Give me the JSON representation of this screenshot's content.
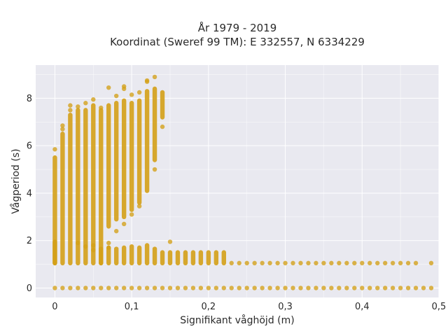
{
  "chart_data": {
    "type": "scatter",
    "title_line1": "År 1979 - 2019",
    "title_line2": "Koordinat (Sweref 99 TM): E 332557, N 6334229",
    "xlabel": "Signifikant våghöjd (m)",
    "ylabel": "Vågperiod (s)",
    "xlim": [
      -0.025,
      0.5
    ],
    "ylim": [
      -0.4,
      9.4
    ],
    "x_ticks": [
      0,
      0.1,
      0.2,
      0.3,
      0.4,
      0.5
    ],
    "x_tick_labels": [
      "0",
      "0,1",
      "0,2",
      "0,3",
      "0,4",
      "0,5"
    ],
    "y_ticks": [
      0,
      2,
      4,
      6,
      8
    ],
    "y_tick_labels": [
      "0",
      "2",
      "4",
      "6",
      "8"
    ],
    "grid": true,
    "colors": {
      "marker": "#d4a017",
      "plot_bg": "#e9e9f0",
      "grid": "#ffffff"
    },
    "columns": [
      {
        "x": 0.0,
        "ymin": 1.05,
        "ymax": 5.5,
        "outliers": [
          5.85
        ]
      },
      {
        "x": 0.01,
        "ymin": 1.05,
        "ymax": 6.5,
        "outliers": [
          6.85,
          6.7
        ]
      },
      {
        "x": 0.02,
        "ymin": 1.05,
        "ymax": 7.3,
        "outliers": [
          7.7,
          7.5
        ]
      },
      {
        "x": 0.03,
        "ymin": 1.05,
        "ymax": 7.5,
        "outliers": [
          7.65,
          1.9
        ]
      },
      {
        "x": 0.04,
        "ymin": 1.05,
        "ymax": 7.5,
        "outliers": [
          7.8,
          1.75
        ]
      },
      {
        "x": 0.05,
        "ymin": 1.05,
        "ymax": 7.7,
        "outliers": [
          7.95,
          1.8,
          1.6
        ]
      },
      {
        "x": 0.06,
        "ymin": 1.05,
        "ymax": 7.5,
        "outliers": [
          7.6
        ]
      },
      {
        "x": 0.07,
        "ymin": 2.6,
        "ymax": 7.7,
        "outliers": [
          8.45,
          1.9,
          1.7
        ]
      },
      {
        "x": 0.08,
        "ymin": 2.9,
        "ymax": 7.8,
        "outliers": [
          8.1,
          2.4
        ]
      },
      {
        "x": 0.09,
        "ymin": 3.0,
        "ymax": 7.9,
        "outliers": [
          8.5,
          8.4,
          2.7
        ]
      },
      {
        "x": 0.1,
        "ymin": 3.3,
        "ymax": 7.8,
        "outliers": [
          8.15,
          3.1
        ]
      },
      {
        "x": 0.11,
        "ymin": 3.6,
        "ymax": 7.9,
        "outliers": [
          8.25,
          3.45
        ]
      },
      {
        "x": 0.12,
        "ymin": 4.1,
        "ymax": 8.3,
        "outliers": [
          8.75,
          8.7
        ]
      },
      {
        "x": 0.13,
        "ymin": 5.4,
        "ymax": 8.4,
        "outliers": [
          8.9,
          5.0
        ]
      },
      {
        "x": 0.14,
        "ymin": 7.2,
        "ymax": 8.25,
        "outliers": [
          6.8
        ]
      }
    ],
    "mid_band": [
      {
        "x": 0.0,
        "ymin": 1.05,
        "ymax": 1.95
      },
      {
        "x": 0.06,
        "ymin": 1.05,
        "ymax": 1.65
      },
      {
        "x": 0.07,
        "ymin": 1.05,
        "ymax": 1.7
      },
      {
        "x": 0.08,
        "ymin": 1.05,
        "ymax": 1.65
      },
      {
        "x": 0.09,
        "ymin": 1.05,
        "ymax": 1.7
      },
      {
        "x": 0.1,
        "ymin": 1.05,
        "ymax": 1.75
      },
      {
        "x": 0.11,
        "ymin": 1.05,
        "ymax": 1.7
      },
      {
        "x": 0.12,
        "ymin": 1.05,
        "ymax": 1.8
      },
      {
        "x": 0.13,
        "ymin": 1.05,
        "ymax": 1.65
      },
      {
        "x": 0.14,
        "ymin": 1.05,
        "ymax": 1.5
      },
      {
        "x": 0.15,
        "ymin": 1.05,
        "ymax": 1.5
      },
      {
        "x": 0.16,
        "ymin": 1.05,
        "ymax": 1.5
      },
      {
        "x": 0.17,
        "ymin": 1.05,
        "ymax": 1.5
      },
      {
        "x": 0.18,
        "ymin": 1.05,
        "ymax": 1.5
      },
      {
        "x": 0.19,
        "ymin": 1.05,
        "ymax": 1.5
      },
      {
        "x": 0.2,
        "ymin": 1.05,
        "ymax": 1.5
      },
      {
        "x": 0.21,
        "ymin": 1.05,
        "ymax": 1.5
      },
      {
        "x": 0.22,
        "ymin": 1.05,
        "ymax": 1.5
      }
    ],
    "extra_points": [
      [
        0.15,
        1.95
      ]
    ],
    "floor_row": {
      "y": 1.05,
      "x_start": 0.23,
      "x_end": 0.47,
      "step": 0.01
    },
    "floor_extra": [
      [
        0.49,
        1.05
      ]
    ],
    "zero_row": {
      "y": 0.0,
      "x_start": 0.0,
      "x_end": 0.49,
      "step": 0.01
    }
  }
}
